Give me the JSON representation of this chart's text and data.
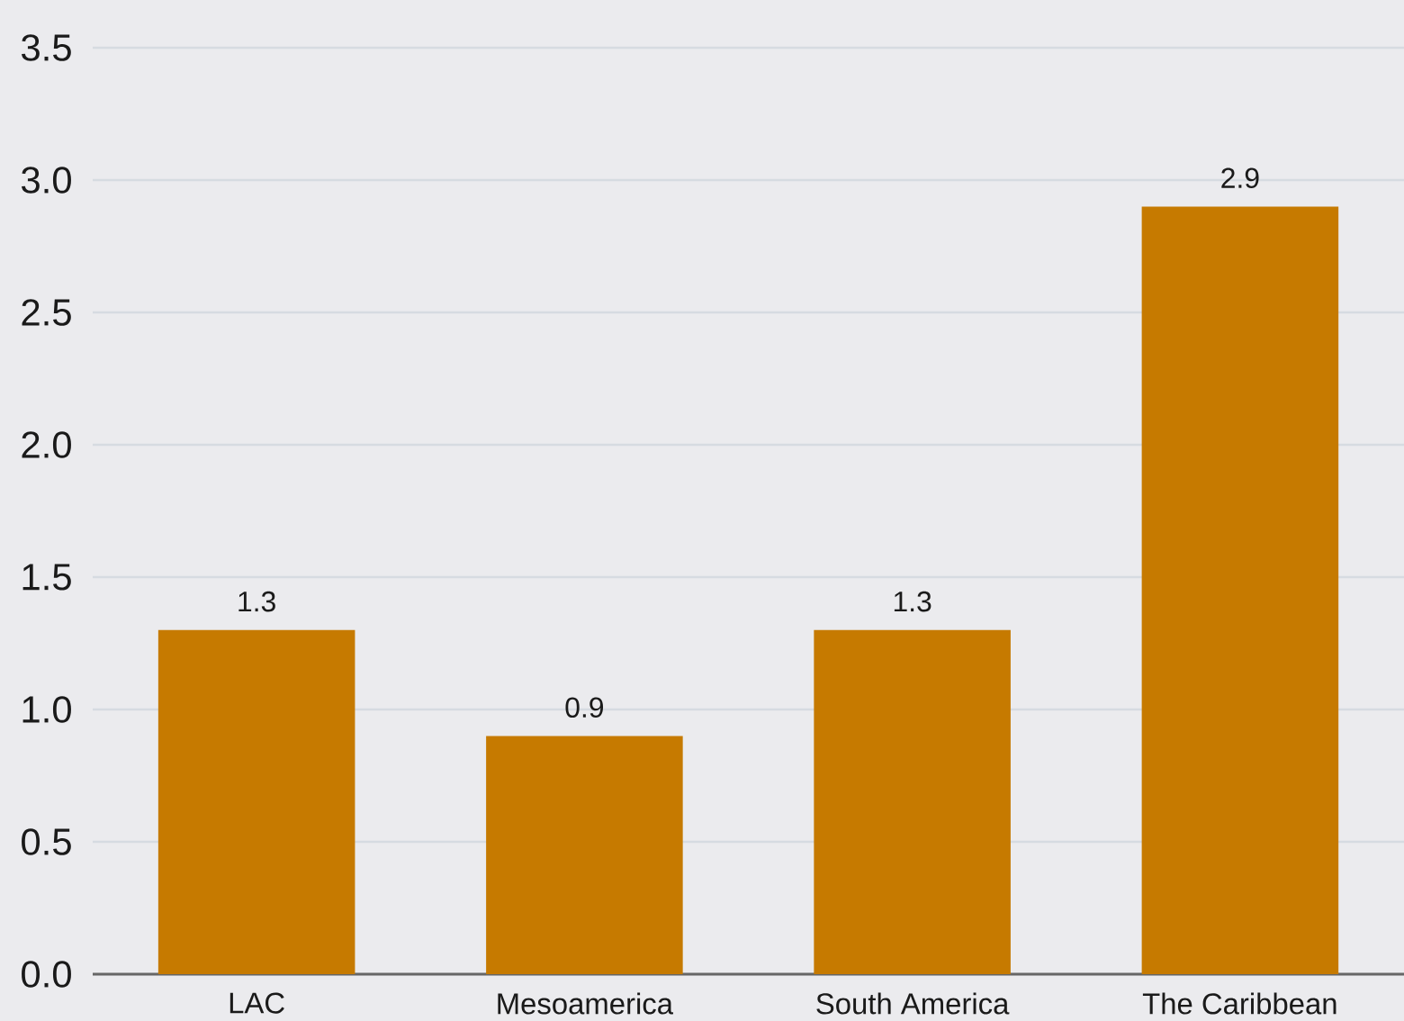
{
  "chart_data": {
    "type": "bar",
    "categories": [
      "LAC",
      "Mesoamerica",
      "South America",
      "The Caribbean"
    ],
    "values": [
      1.3,
      0.9,
      1.3,
      2.9
    ],
    "color": "#c67a00",
    "ylim": [
      0,
      3.5
    ],
    "yticks": [
      {
        "value": 0,
        "label": "0.0"
      },
      0.5,
      {
        "value": 1,
        "label": "1.0"
      },
      1.5,
      {
        "value": 2,
        "label": "2.0"
      },
      2.5,
      {
        "value": 3,
        "label": "3.0"
      },
      3.5
    ],
    "grid": "y",
    "data_labels": true
  }
}
